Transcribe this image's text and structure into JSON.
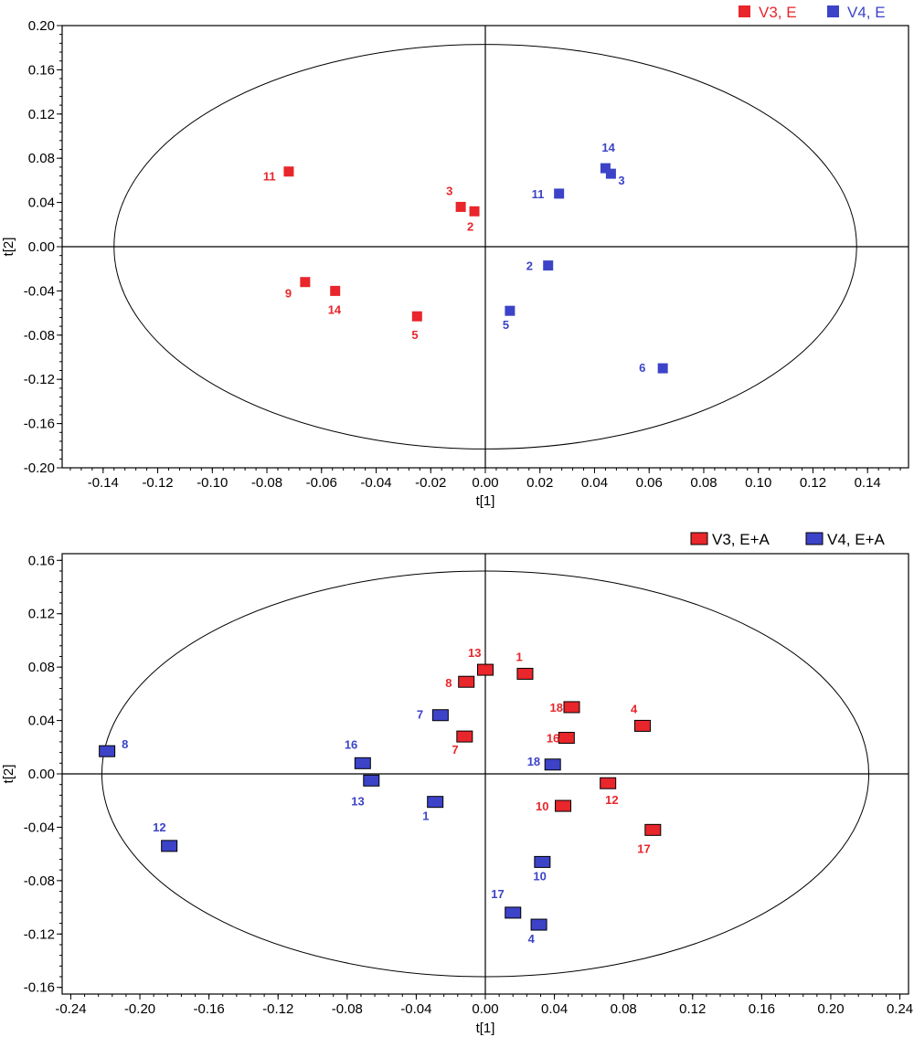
{
  "chart_data": [
    {
      "type": "scatter",
      "title": "",
      "xlabel": "t[1]",
      "ylabel": "t[2]",
      "xlim": [
        -0.155,
        0.155
      ],
      "ylim": [
        -0.2,
        0.2
      ],
      "x_ticks": [
        -0.14,
        -0.12,
        -0.1,
        -0.08,
        -0.06,
        -0.04,
        -0.02,
        0.0,
        0.02,
        0.04,
        0.06,
        0.08,
        0.1,
        0.12,
        0.14
      ],
      "x_tick_labels": [
        "-0.14",
        "-0.12",
        "-0.10",
        "-0.08",
        "-0.06",
        "-0.04",
        "-0.02",
        "0.00",
        "0.02",
        "0.04",
        "0.06",
        "0.08",
        "0.10",
        "0.12",
        "0.14"
      ],
      "y_ticks": [
        0.2,
        0.16,
        0.12,
        0.08,
        0.04,
        0.0,
        -0.04,
        -0.08,
        -0.12,
        -0.16,
        -0.2
      ],
      "y_tick_labels": [
        "0.20",
        "0.16",
        "0.12",
        "0.08",
        "0.04",
        "0.00",
        "-0.04",
        "-0.08",
        "-0.12",
        "-0.16",
        "-0.20"
      ],
      "ellipse": {
        "rx": 0.136,
        "ry": 0.183
      },
      "legend_position": "top-right",
      "series": [
        {
          "name": "V3, E",
          "color": "#e8262b",
          "points": [
            {
              "label": "11",
              "x": -0.072,
              "y": 0.068
            },
            {
              "label": "3",
              "x": -0.009,
              "y": 0.036
            },
            {
              "label": "2",
              "x": -0.004,
              "y": 0.032
            },
            {
              "label": "9",
              "x": -0.066,
              "y": -0.032
            },
            {
              "label": "14",
              "x": -0.055,
              "y": -0.04
            },
            {
              "label": "5",
              "x": -0.025,
              "y": -0.063
            }
          ]
        },
        {
          "name": "V4, E",
          "color": "#3c43c8",
          "points": [
            {
              "label": "14",
              "x": 0.044,
              "y": 0.071
            },
            {
              "label": "3",
              "x": 0.046,
              "y": 0.066
            },
            {
              "label": "11",
              "x": 0.027,
              "y": 0.048
            },
            {
              "label": "2",
              "x": 0.023,
              "y": -0.017
            },
            {
              "label": "5",
              "x": 0.009,
              "y": -0.058
            },
            {
              "label": "6",
              "x": 0.065,
              "y": -0.11
            }
          ]
        }
      ]
    },
    {
      "type": "scatter",
      "title": "",
      "xlabel": "t[1]",
      "ylabel": "t[2]",
      "xlim": [
        -0.245,
        0.245
      ],
      "ylim": [
        -0.165,
        0.165
      ],
      "x_ticks": [
        -0.24,
        -0.2,
        -0.16,
        -0.12,
        -0.08,
        -0.04,
        0.0,
        0.04,
        0.08,
        0.12,
        0.16,
        0.2,
        0.24
      ],
      "x_tick_labels": [
        "-0.24",
        "-0.20",
        "-0.16",
        "-0.12",
        "-0.08",
        "-0.04",
        "0.00",
        "0.04",
        "0.08",
        "0.12",
        "0.16",
        "0.20",
        "0.24"
      ],
      "y_ticks": [
        0.16,
        0.12,
        0.08,
        0.04,
        0.0,
        -0.04,
        -0.08,
        -0.12,
        -0.16
      ],
      "y_tick_labels": [
        "0.16",
        "0.12",
        "0.08",
        "0.04",
        "0.00",
        "-0.04",
        "-0.08",
        "-0.12",
        "-0.16"
      ],
      "ellipse": {
        "rx": 0.222,
        "ry": 0.152
      },
      "legend_position": "top-right",
      "series": [
        {
          "name": "V3, E+A",
          "color": "#e8262b",
          "points": [
            {
              "label": "13",
              "x": 0.0,
              "y": 0.078
            },
            {
              "label": "1",
              "x": 0.023,
              "y": 0.075
            },
            {
              "label": "8",
              "x": -0.011,
              "y": 0.069
            },
            {
              "label": "18",
              "x": 0.05,
              "y": 0.05
            },
            {
              "label": "4",
              "x": 0.091,
              "y": 0.036
            },
            {
              "label": "7",
              "x": -0.012,
              "y": 0.028
            },
            {
              "label": "16",
              "x": 0.047,
              "y": 0.027
            },
            {
              "label": "12",
              "x": 0.071,
              "y": -0.007
            },
            {
              "label": "10",
              "x": 0.045,
              "y": -0.024
            },
            {
              "label": "17",
              "x": 0.097,
              "y": -0.042
            }
          ]
        },
        {
          "name": "V4, E+A",
          "color": "#3c43c8",
          "points": [
            {
              "label": "8",
              "x": -0.219,
              "y": 0.017
            },
            {
              "label": "7",
              "x": -0.026,
              "y": 0.044
            },
            {
              "label": "16",
              "x": -0.071,
              "y": 0.008
            },
            {
              "label": "13",
              "x": -0.066,
              "y": -0.005
            },
            {
              "label": "18",
              "x": 0.039,
              "y": 0.007
            },
            {
              "label": "1",
              "x": -0.029,
              "y": -0.021
            },
            {
              "label": "12",
              "x": -0.183,
              "y": -0.054
            },
            {
              "label": "10",
              "x": 0.033,
              "y": -0.066
            },
            {
              "label": "17",
              "x": 0.016,
              "y": -0.104
            },
            {
              "label": "4",
              "x": 0.031,
              "y": -0.113
            }
          ]
        }
      ]
    }
  ]
}
